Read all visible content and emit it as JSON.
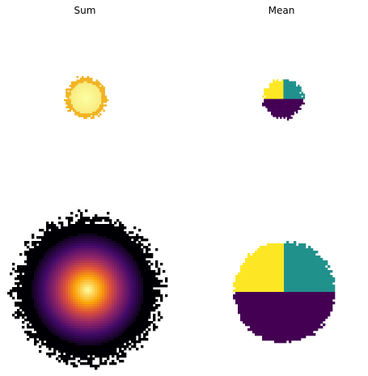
{
  "chart_data": [
    {
      "type": "heatmap",
      "title": "Sum",
      "description_of_panels": [
        "small",
        "large"
      ],
      "colormap": "inferno",
      "panels": [
        {
          "name": "small",
          "radius_px": 28,
          "noise": "sparse_edge"
        },
        {
          "name": "large",
          "radius_px": 95,
          "noise": "sparse_edge"
        }
      ]
    },
    {
      "type": "heatmap",
      "title": "Mean",
      "colormap": "viridis",
      "panels": [
        {
          "name": "small",
          "quadrants": {
            "top_left": "#fde725",
            "top_right": "#21918c",
            "bottom": "#440154"
          }
        },
        {
          "name": "large",
          "quadrants": {
            "top_left": "#fde725",
            "top_right": "#21918c",
            "bottom": "#440154"
          }
        }
      ]
    }
  ]
}
